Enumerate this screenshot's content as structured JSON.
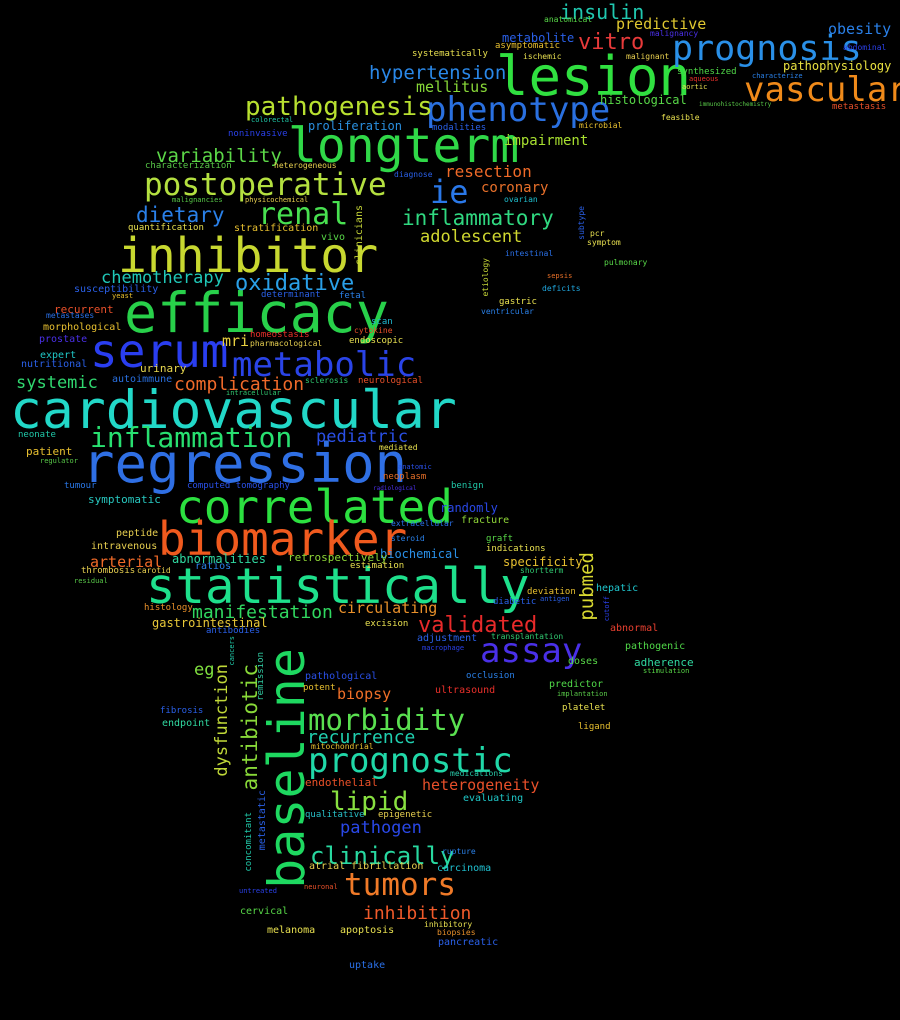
{
  "words": [
    {
      "text": "cardiovascular",
      "color": "#22d8c8"
    },
    {
      "text": "regression",
      "color": "#2f6fe4"
    },
    {
      "text": "efficacy",
      "color": "#28d04a"
    },
    {
      "text": "statistically",
      "color": "#1ee08c"
    },
    {
      "text": "inhibitor",
      "color": "#c8d830"
    },
    {
      "text": "lesion",
      "color": "#30e040"
    },
    {
      "text": "longterm",
      "color": "#30d848"
    },
    {
      "text": "baseline",
      "color": "#1ed860"
    },
    {
      "text": "correlated",
      "color": "#2ce040"
    },
    {
      "text": "biomarker",
      "color": "#f05a1e"
    },
    {
      "text": "serum",
      "color": "#2a3ef0"
    },
    {
      "text": "prognosis",
      "color": "#2a90e8"
    },
    {
      "text": "vascular",
      "color": "#f08a1a"
    },
    {
      "text": "phenotype",
      "color": "#2a70e0"
    },
    {
      "text": "metabolic",
      "color": "#2a44e8"
    },
    {
      "text": "postoperative",
      "color": "#b4e040"
    },
    {
      "text": "prognostic",
      "color": "#20d8a8"
    },
    {
      "text": "assay",
      "color": "#4a30e8"
    },
    {
      "text": "tumors",
      "color": "#f07a28"
    },
    {
      "text": "morbidity",
      "color": "#5ae050"
    },
    {
      "text": "inflammation",
      "color": "#28e070"
    },
    {
      "text": "renal",
      "color": "#48e050"
    },
    {
      "text": "pathogenesis",
      "color": "#b8e030"
    },
    {
      "text": "ie",
      "color": "#2a78e8"
    },
    {
      "text": "oxidative",
      "color": "#2aa0e8"
    },
    {
      "text": "validated",
      "color": "#e82a2a"
    },
    {
      "text": "clinically",
      "color": "#28d8a0"
    },
    {
      "text": "lipid",
      "color": "#88e040"
    },
    {
      "text": "antibiotic",
      "color": "#88d838"
    },
    {
      "text": "insulin",
      "color": "#20c8b0"
    },
    {
      "text": "vitro",
      "color": "#e83a3a"
    },
    {
      "text": "hypertension",
      "color": "#2a88e8"
    },
    {
      "text": "inflammatory",
      "color": "#30d880"
    },
    {
      "text": "dietary",
      "color": "#2a80e8"
    },
    {
      "text": "variability",
      "color": "#5cd848"
    },
    {
      "text": "chemotherapy",
      "color": "#20c8b8"
    },
    {
      "text": "complication",
      "color": "#f06a2a"
    },
    {
      "text": "manifestation",
      "color": "#30d860"
    },
    {
      "text": "pediatric",
      "color": "#2a50e8"
    },
    {
      "text": "recurrence",
      "color": "#20d0b0"
    },
    {
      "text": "inhibition",
      "color": "#f05a2a"
    },
    {
      "text": "dysfunction",
      "color": "#c0d838"
    },
    {
      "text": "pubmed",
      "color": "#d8d830"
    },
    {
      "text": "heterogeneity",
      "color": "#e8502a"
    },
    {
      "text": "pathogen",
      "color": "#2a48e8"
    },
    {
      "text": "systemic",
      "color": "#30d870"
    },
    {
      "text": "adolescent",
      "color": "#d0d830"
    },
    {
      "text": "arterial",
      "color": "#f06a28"
    },
    {
      "text": "resection",
      "color": "#f06a28"
    },
    {
      "text": "predictive",
      "color": "#e0c830"
    },
    {
      "text": "obesity",
      "color": "#2a80e8"
    },
    {
      "text": "mellitus",
      "color": "#88d838"
    },
    {
      "text": "impairment",
      "color": "#a8e030"
    },
    {
      "text": "coronary",
      "color": "#e8702a"
    },
    {
      "text": "circulating",
      "color": "#e8902a"
    },
    {
      "text": "biopsy",
      "color": "#f07028"
    },
    {
      "text": "mri",
      "color": "#e8d040"
    },
    {
      "text": "eg",
      "color": "#80e040"
    },
    {
      "text": "pathophysiology",
      "color": "#e8e040"
    },
    {
      "text": "histological",
      "color": "#58d848"
    },
    {
      "text": "metabolite",
      "color": "#2a60e8"
    },
    {
      "text": "proliferation",
      "color": "#2a90e0"
    },
    {
      "text": "urinary",
      "color": "#e8d850"
    },
    {
      "text": "autoimmune",
      "color": "#2a70e0"
    },
    {
      "text": "symptomatic",
      "color": "#28c8c0"
    },
    {
      "text": "endothelial",
      "color": "#e85028"
    },
    {
      "text": "abnormalities",
      "color": "#30d8a0"
    },
    {
      "text": "gastrointestinal",
      "color": "#e8c838"
    },
    {
      "text": "biochemical",
      "color": "#2a90e8"
    },
    {
      "text": "retrospectively",
      "color": "#90d838"
    },
    {
      "text": "randomly",
      "color": "#2a48e8"
    },
    {
      "text": "specificity",
      "color": "#e8c030"
    },
    {
      "text": "adjustment",
      "color": "#2a60e8"
    },
    {
      "text": "ultrasound",
      "color": "#e8302a"
    },
    {
      "text": "pathological",
      "color": "#2a50e8"
    },
    {
      "text": "potent",
      "color": "#e8c030"
    },
    {
      "text": "hepatic",
      "color": "#20c8d0"
    },
    {
      "text": "abnormal",
      "color": "#e84030"
    },
    {
      "text": "pathogenic",
      "color": "#50d848"
    },
    {
      "text": "adherence",
      "color": "#30d8a0"
    },
    {
      "text": "doses",
      "color": "#58d848"
    },
    {
      "text": "predictor",
      "color": "#50d848"
    },
    {
      "text": "platelet",
      "color": "#e8e050"
    },
    {
      "text": "ligand",
      "color": "#e8c030"
    },
    {
      "text": "evaluating",
      "color": "#20c8c8"
    },
    {
      "text": "carcinoma",
      "color": "#20c0d0"
    },
    {
      "text": "pancreatic",
      "color": "#2a60e8"
    },
    {
      "text": "apoptosis",
      "color": "#e8e050"
    },
    {
      "text": "melanoma",
      "color": "#e8e050"
    },
    {
      "text": "cervical",
      "color": "#58d848"
    },
    {
      "text": "uptake",
      "color": "#2a70e8"
    },
    {
      "text": "atrial fibrillation",
      "color": "#e8d050"
    },
    {
      "text": "medications",
      "color": "#28c8a8"
    },
    {
      "text": "qualitative",
      "color": "#28c0c8"
    },
    {
      "text": "epigenetic",
      "color": "#e8d050"
    },
    {
      "text": "neoplasm",
      "color": "#e87028"
    },
    {
      "text": "benign",
      "color": "#20c8a8"
    },
    {
      "text": "fracture",
      "color": "#90d838"
    },
    {
      "text": "graft",
      "color": "#58d848"
    },
    {
      "text": "indications",
      "color": "#e8e050"
    },
    {
      "text": "shortterm",
      "color": "#30c870"
    },
    {
      "text": "deviation",
      "color": "#e8c030"
    },
    {
      "text": "diabetic",
      "color": "#2a60e8"
    },
    {
      "text": "excision",
      "color": "#e8e050"
    },
    {
      "text": "transplantation",
      "color": "#30c870"
    },
    {
      "text": "occlusion",
      "color": "#2a80e8"
    },
    {
      "text": "implantation",
      "color": "#58c848"
    },
    {
      "text": "macrophage",
      "color": "#2a40e8"
    },
    {
      "text": "peptide",
      "color": "#e8d050"
    },
    {
      "text": "intravenous",
      "color": "#e8d050"
    },
    {
      "text": "ratios",
      "color": "#2a80e8"
    },
    {
      "text": "thrombosis",
      "color": "#e8d050"
    },
    {
      "text": "carotid",
      "color": "#e8d050"
    },
    {
      "text": "histology",
      "color": "#e8902a"
    },
    {
      "text": "residual",
      "color": "#58c848"
    },
    {
      "text": "antibodies",
      "color": "#2a60e8"
    },
    {
      "text": "fibrosis",
      "color": "#2a60e8"
    },
    {
      "text": "endpoint",
      "color": "#30d8a0"
    },
    {
      "text": "mitochondrial",
      "color": "#e8c030"
    },
    {
      "text": "computed tomography",
      "color": "#2a50e8"
    },
    {
      "text": "tumour",
      "color": "#2a78e8"
    },
    {
      "text": "patient",
      "color": "#e8c030"
    },
    {
      "text": "regulator",
      "color": "#58c848"
    },
    {
      "text": "neonate",
      "color": "#20c8a8"
    },
    {
      "text": "mediated",
      "color": "#e8e050"
    },
    {
      "text": "anatomic",
      "color": "#2a50e8"
    },
    {
      "text": "radiological",
      "color": "#4a30e8"
    },
    {
      "text": "extracellular",
      "color": "#2a70e8"
    },
    {
      "text": "steroid",
      "color": "#2a80e8"
    },
    {
      "text": "estimation",
      "color": "#e8e050"
    },
    {
      "text": "intracellular",
      "color": "#30c870"
    },
    {
      "text": "sclerosis",
      "color": "#30c870"
    },
    {
      "text": "neurological",
      "color": "#e8502a"
    },
    {
      "text": "endoscopic",
      "color": "#e8e050"
    },
    {
      "text": "pharmacological",
      "color": "#e8d050"
    },
    {
      "text": "homeostasis",
      "color": "#e8302a"
    },
    {
      "text": "cytokine",
      "color": "#e8502a"
    },
    {
      "text": "scan",
      "color": "#20b8d0"
    },
    {
      "text": "fetal",
      "color": "#2a80e8"
    },
    {
      "text": "determinant",
      "color": "#2a60e8"
    },
    {
      "text": "susceptibility",
      "color": "#2a60e8"
    },
    {
      "text": "yeast",
      "color": "#e8c030"
    },
    {
      "text": "recurrent",
      "color": "#e8502a"
    },
    {
      "text": "metastases",
      "color": "#2a70e8"
    },
    {
      "text": "morphological",
      "color": "#e8c030"
    },
    {
      "text": "prostate",
      "color": "#4a30e8"
    },
    {
      "text": "expert",
      "color": "#20c8c8"
    },
    {
      "text": "nutritional",
      "color": "#2a60e8"
    },
    {
      "text": "quantification",
      "color": "#e8e050"
    },
    {
      "text": "stratification",
      "color": "#e8c030"
    },
    {
      "text": "vivo",
      "color": "#58d848"
    },
    {
      "text": "clinicians",
      "color": "#c8d838"
    },
    {
      "text": "malignancies",
      "color": "#58c848"
    },
    {
      "text": "physicochemical",
      "color": "#e8d050"
    },
    {
      "text": "characterization",
      "color": "#58c848"
    },
    {
      "text": "heterogeneous",
      "color": "#e8d050"
    },
    {
      "text": "noninvasive",
      "color": "#2a40e8"
    },
    {
      "text": "colorectal",
      "color": "#20c8a8"
    },
    {
      "text": "modalities",
      "color": "#2a60e8"
    },
    {
      "text": "diagnose",
      "color": "#2a60e8"
    },
    {
      "text": "ovarian",
      "color": "#20c0d0"
    },
    {
      "text": "microbial",
      "color": "#e8c030"
    },
    {
      "text": "feasible",
      "color": "#e8e050"
    },
    {
      "text": "systematically",
      "color": "#e8e050"
    },
    {
      "text": "asymptomatic",
      "color": "#e8c030"
    },
    {
      "text": "ischemic",
      "color": "#e8e050"
    },
    {
      "text": "malignant",
      "color": "#e8d050"
    },
    {
      "text": "malignancy",
      "color": "#4a30e8"
    },
    {
      "text": "anatomical",
      "color": "#58d848"
    },
    {
      "text": "abdominal",
      "color": "#2a40e8"
    },
    {
      "text": "synthesized",
      "color": "#50d848"
    },
    {
      "text": "aqueous",
      "color": "#e8302a"
    },
    {
      "text": "aortic",
      "color": "#e8e050"
    },
    {
      "text": "characterize",
      "color": "#2a80e8"
    },
    {
      "text": "immunohistochemistry",
      "color": "#58c848"
    },
    {
      "text": "metastasis",
      "color": "#e8502a"
    },
    {
      "text": "intestinal",
      "color": "#2a70e8"
    },
    {
      "text": "pcr",
      "color": "#e8e050"
    },
    {
      "text": "symptom",
      "color": "#e8e050"
    },
    {
      "text": "subtype",
      "color": "#2a60e8"
    },
    {
      "text": "pulmonary",
      "color": "#58d848"
    },
    {
      "text": "etiology",
      "color": "#c8d838"
    },
    {
      "text": "sepsis",
      "color": "#e87028"
    },
    {
      "text": "deficits",
      "color": "#20a8e0"
    },
    {
      "text": "gastric",
      "color": "#e8e050"
    },
    {
      "text": "ventricular",
      "color": "#2a80e8"
    },
    {
      "text": "stimulation",
      "color": "#58d848"
    },
    {
      "text": "antigen",
      "color": "#2a60e8"
    },
    {
      "text": "cutoff",
      "color": "#2a40e8"
    },
    {
      "text": "cancers",
      "color": "#20c8a8"
    },
    {
      "text": "remission",
      "color": "#30c8a0"
    },
    {
      "text": "metastatic",
      "color": "#2a60e8"
    },
    {
      "text": "concomitant",
      "color": "#20c8a8"
    },
    {
      "text": "untreated",
      "color": "#2a40e8"
    },
    {
      "text": "neuronal",
      "color": "#e8502a"
    },
    {
      "text": "rupture",
      "color": "#2a80e8"
    },
    {
      "text": "inhibitory",
      "color": "#e8e050"
    },
    {
      "text": "biopsies",
      "color": "#e8902a"
    }
  ]
}
